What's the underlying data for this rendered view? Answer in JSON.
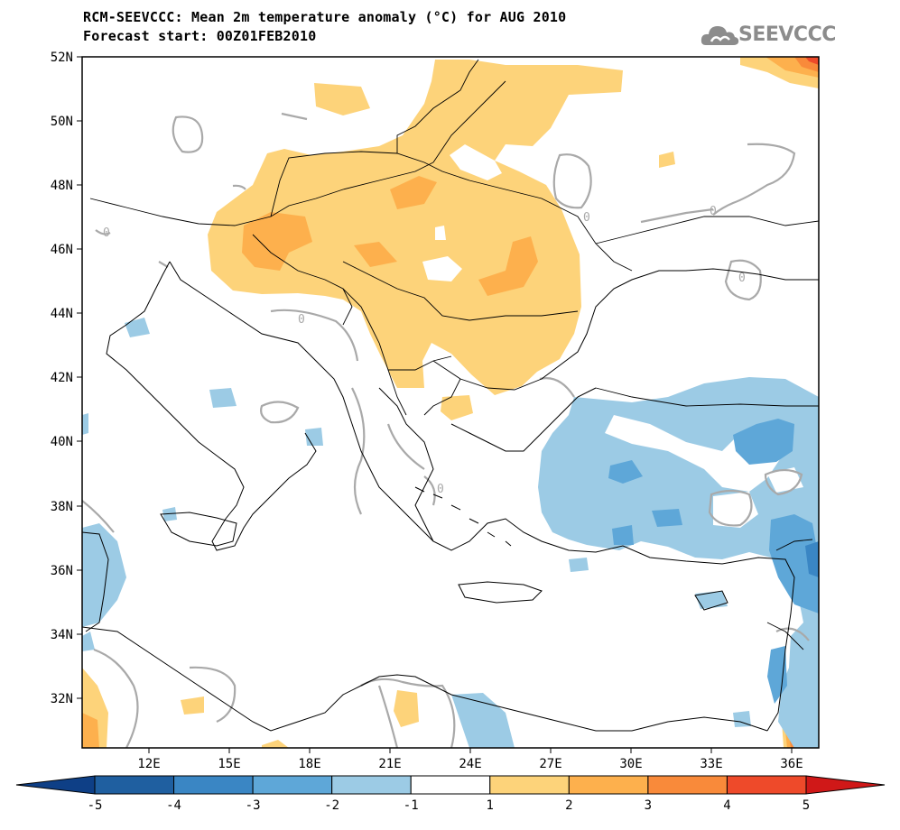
{
  "title": {
    "line1": "RCM-SEEVCCC: Mean 2m temperature anomaly (°C) for AUG 2010",
    "line2": "Forecast start: 00Z01FEB2010"
  },
  "logo": {
    "text": "SEEVCCC",
    "icon": "cloud-icon"
  },
  "map": {
    "lat_labels": [
      "52N",
      "50N",
      "48N",
      "46N",
      "44N",
      "42N",
      "40N",
      "38N",
      "36N",
      "34N",
      "32N"
    ],
    "lon_labels": [
      "12E",
      "15E",
      "18E",
      "21E",
      "24E",
      "27E",
      "30E",
      "33E",
      "36E"
    ],
    "lat_range": [
      30.5,
      52
    ],
    "lon_range": [
      9.5,
      37
    ],
    "contour_label": "0"
  },
  "colorbar": {
    "labels": [
      "-5",
      "-4",
      "-3",
      "-2",
      "-1",
      "1",
      "2",
      "3",
      "4",
      "5"
    ],
    "colors": [
      "#1f5fa0",
      "#3a86c4",
      "#5ea7d8",
      "#9ccbe5",
      "#ffffff",
      "#fdd37a",
      "#fdb04d",
      "#f98a3a",
      "#ee4a2a"
    ],
    "under_color": "#0e3f86",
    "over_color": "#d01818"
  }
}
